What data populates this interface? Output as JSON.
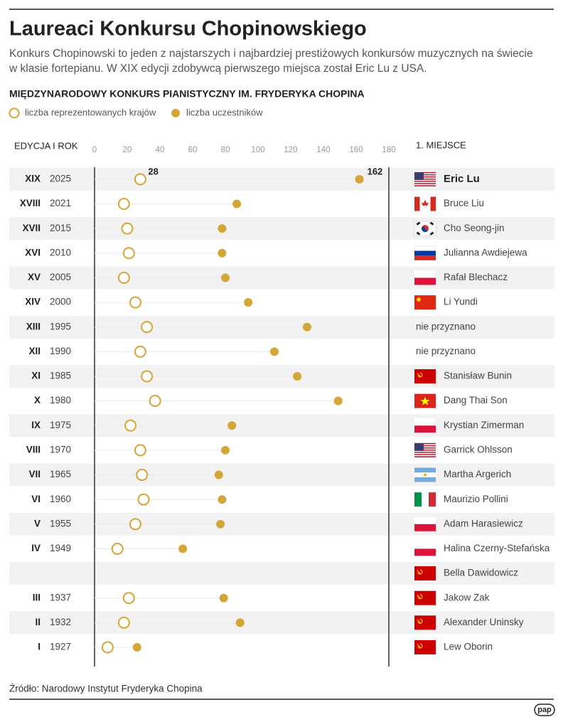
{
  "chart_data": {
    "type": "dot",
    "title": "Laureaci Konkursu Chopinowskiego",
    "subtitle": [
      "Konkurs Chopinowski to jeden z najstarszych i najbardziej prestiżowych konkursów muzycznych na świecie",
      "w klasie fortepianu. W XIX edycji zdobywcą pierwszego miejsca został Eric Lu z USA."
    ],
    "chart_title": "MIĘDZYNARODOWY KONKURS PIANISTYCZNY IM. FRYDERYKA CHOPINA",
    "category_header": "EDYCJA I ROK",
    "winner_header": "1. MIEJSCE",
    "categories": [
      "XIX",
      "XVIII",
      "XVII",
      "XVI",
      "XV",
      "XIV",
      "XIII",
      "XII",
      "XI",
      "X",
      "IX",
      "VIII",
      "VII",
      "VI",
      "V",
      "IV",
      null,
      "III",
      "II",
      "I"
    ],
    "years": [
      "2025",
      "2021",
      "2015",
      "2010",
      "2005",
      "2000",
      "1995",
      "1990",
      "1985",
      "1980",
      "1975",
      "1970",
      "1965",
      "1960",
      "1955",
      "1949",
      null,
      "1937",
      "1932",
      "1927"
    ],
    "winners": [
      "Eric Lu",
      "Bruce Liu",
      "Cho Seong-jin",
      "Julianna Awdiejewa",
      "Rafał Blechacz",
      "Li Yundi",
      "nie przyznano",
      "nie przyznano",
      "Stanisław Bunin",
      "Dang Thai Son",
      "Krystian Zimerman",
      "Garrick Ohlsson",
      "Martha Argerich",
      "Maurizio Pollini",
      "Adam Harasiewicz",
      "Halina Czerny-Stefańska",
      "Bella Dawidowicz",
      "Jakow Zak",
      "Alexander Uninsky",
      "Lew Oborin"
    ],
    "series": [
      {
        "name": "liczba reprezentowanych krajów",
        "color": "#d4a537",
        "marker": "open",
        "values": [
          28,
          18,
          20,
          21,
          18,
          25,
          32,
          28,
          32,
          37,
          22,
          28,
          29,
          30,
          25,
          14,
          null,
          21,
          18,
          8
        ],
        "value_labels": [
          "28",
          null,
          null,
          null,
          null,
          null,
          null,
          null,
          null,
          null,
          null,
          null,
          null,
          null,
          null,
          null,
          null,
          null,
          null,
          null
        ]
      },
      {
        "name": "liczba uczestników",
        "color": "#d4a537",
        "marker": "filled",
        "values": [
          162,
          87,
          78,
          78,
          80,
          94,
          130,
          110,
          124,
          149,
          84,
          80,
          76,
          78,
          77,
          54,
          null,
          79,
          89,
          26
        ],
        "value_labels": [
          "162",
          null,
          null,
          null,
          null,
          null,
          null,
          null,
          null,
          null,
          null,
          null,
          null,
          null,
          null,
          null,
          null,
          null,
          null,
          null
        ]
      }
    ],
    "xlim": [
      0,
      180
    ],
    "xticks": [
      0,
      20,
      40,
      60,
      80,
      100,
      120,
      140,
      160,
      180
    ],
    "source": "Źródło: Narodowy Instytut Fryderyka Chopina",
    "logo": "pap"
  }
}
